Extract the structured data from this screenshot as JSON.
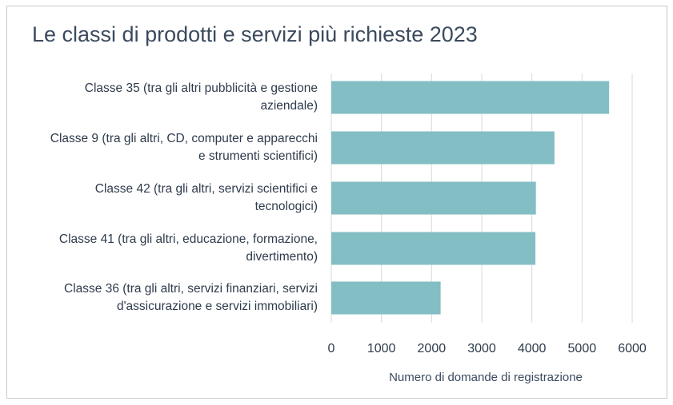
{
  "chart_data": {
    "type": "bar",
    "orientation": "horizontal",
    "title": "Le classi di prodotti e servizi più richieste 2023",
    "xlabel": "Numero di domande di registrazione",
    "ylabel": "",
    "xlim": [
      0,
      6000
    ],
    "xticks": [
      0,
      1000,
      2000,
      3000,
      4000,
      5000,
      6000
    ],
    "grid": "vertical",
    "bar_color": "#82bec4",
    "categories": [
      "Classe 35 (tra gli altri pubblicità e gestione aziendale)",
      "Classe 9 (tra gli altri, CD, computer e apparecchi e strumenti scientifici)",
      "Classe 42 (tra gli altri, servizi scientifici e tecnologici)",
      "Classe 41 (tra gli altri, educazione, formazione, divertimento)",
      "Classe 36 (tra gli altri, servizi finanziari, servizi d'assicurazione e servizi immobiliari)"
    ],
    "category_lines": [
      [
        "Classe 35 (tra gli altri pubblicità e gestione",
        "aziendale)"
      ],
      [
        "Classe 9 (tra gli altri, CD, computer e apparecchi",
        "e strumenti scientifici)"
      ],
      [
        "Classe 42 (tra gli altri, servizi scientifici e",
        "tecnologici)"
      ],
      [
        "Classe 41 (tra gli altri, educazione, formazione,",
        "divertimento)"
      ],
      [
        "Classe 36 (tra gli altri, servizi finanziari, servizi",
        "d'assicurazione e servizi immobiliari)"
      ]
    ],
    "values": [
      5540,
      4450,
      4080,
      4070,
      2180
    ]
  }
}
